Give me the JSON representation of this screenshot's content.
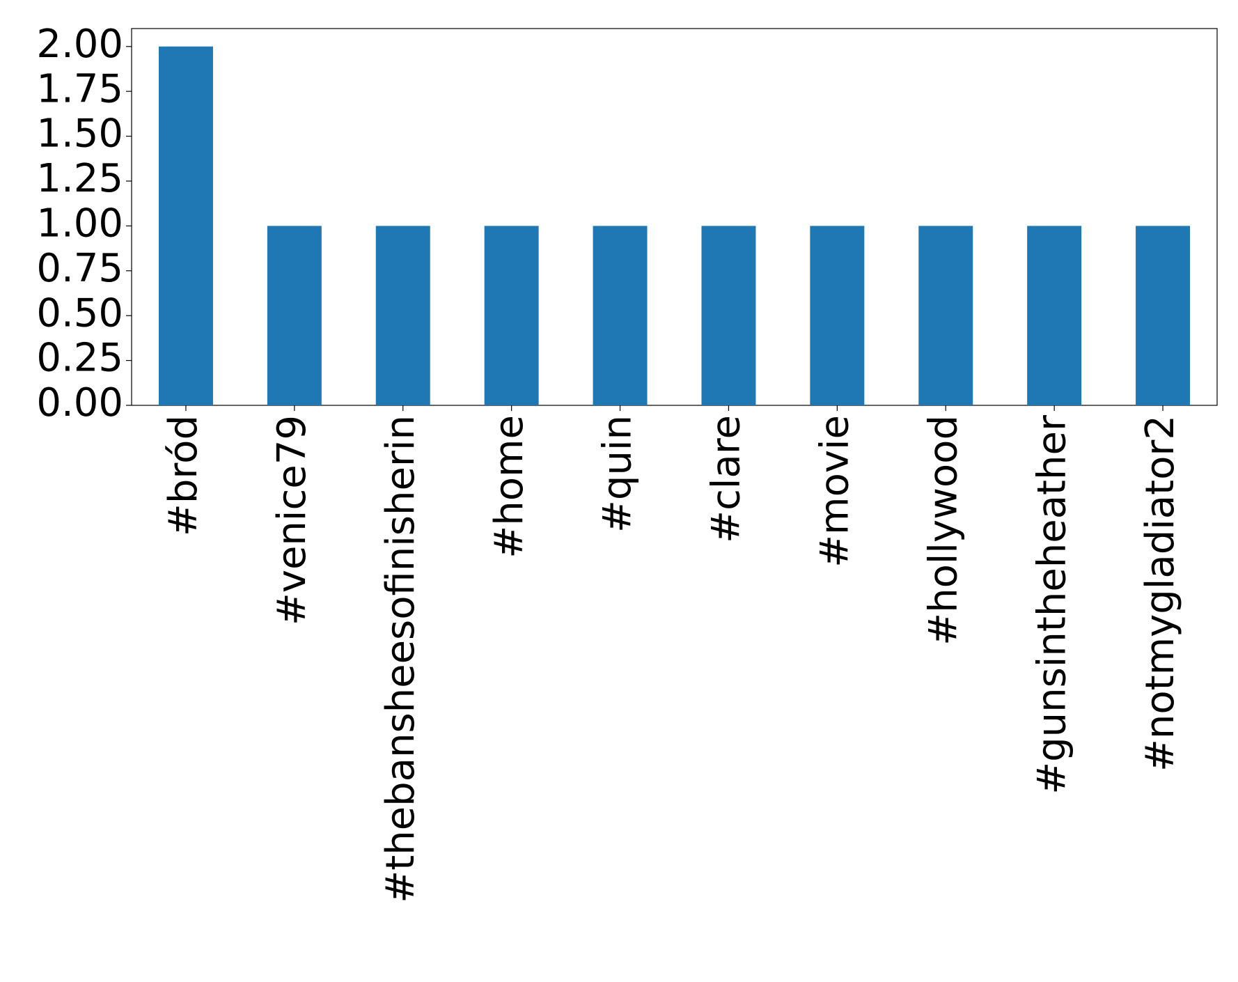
{
  "chart_data": {
    "type": "bar",
    "categories": [
      "#bród",
      "#venice79",
      "#thebansheesofinisherin",
      "#home",
      "#quin",
      "#clare",
      "#movie",
      "#hollywood",
      "#gunsintheheather",
      "#notmygladiator2"
    ],
    "values": [
      2,
      1,
      1,
      1,
      1,
      1,
      1,
      1,
      1,
      1
    ],
    "color": "#1f77b4",
    "ylim": [
      0,
      2.1
    ],
    "yticks": [
      {
        "value": 0,
        "label": "0.00"
      },
      {
        "value": 0.25,
        "label": "0.25"
      },
      {
        "value": 0.5,
        "label": "0.50"
      },
      {
        "value": 0.75,
        "label": "0.75"
      },
      {
        "value": 1,
        "label": "1.00"
      },
      {
        "value": 1.25,
        "label": "1.25"
      },
      {
        "value": 1.5,
        "label": "1.50"
      },
      {
        "value": 1.75,
        "label": "1.75"
      },
      {
        "value": 2,
        "label": "2.00"
      }
    ],
    "grid": false
  }
}
